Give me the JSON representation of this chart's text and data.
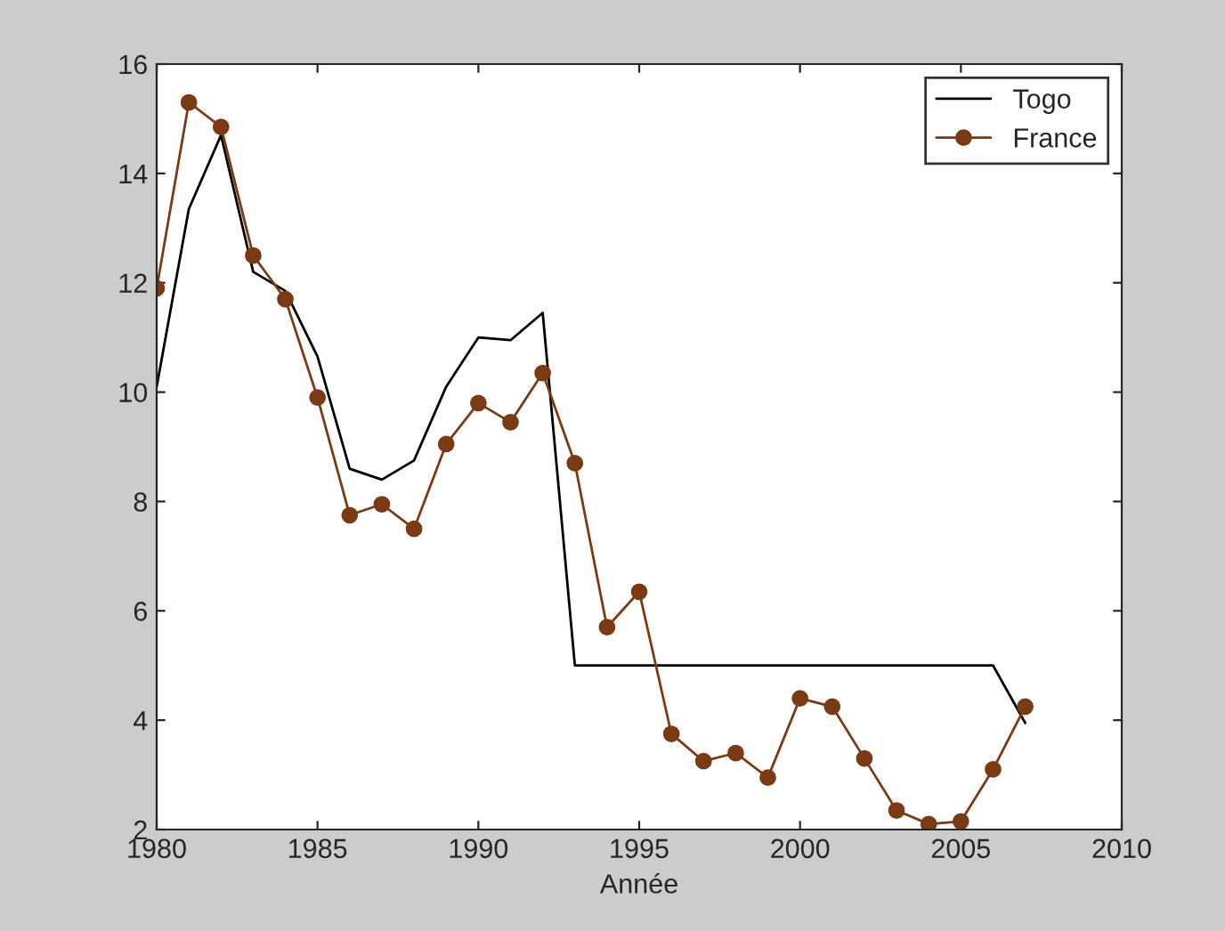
{
  "chart_data": {
    "type": "line",
    "xlabel": "Année",
    "xlim": [
      1980,
      2010
    ],
    "xticks": [
      1980,
      1985,
      1990,
      1995,
      2000,
      2005,
      2010
    ],
    "ylim": [
      2,
      16
    ],
    "yticks": [
      2,
      4,
      6,
      8,
      10,
      12,
      14,
      16
    ],
    "grid": false,
    "legend": "top right",
    "series": [
      {
        "name": "Togo",
        "color": "#000000",
        "marker": "none",
        "x": [
          1980,
          1981,
          1982,
          1983,
          1984,
          1985,
          1986,
          1987,
          1988,
          1989,
          1990,
          1991,
          1992,
          1993,
          2006,
          2007
        ],
        "values": [
          10.1,
          13.35,
          14.7,
          12.2,
          11.85,
          10.65,
          8.6,
          8.4,
          8.75,
          10.1,
          11.0,
          10.95,
          11.45,
          5.0,
          5.0,
          3.95
        ]
      },
      {
        "name": "France",
        "color": "#7a3a14",
        "marker": "circle",
        "x": [
          1980,
          1981,
          1982,
          1983,
          1984,
          1985,
          1986,
          1987,
          1988,
          1989,
          1990,
          1991,
          1992,
          1993,
          1994,
          1995,
          1996,
          1997,
          1998,
          1999,
          2000,
          2001,
          2002,
          2003,
          2004,
          2005,
          2006,
          2007
        ],
        "values": [
          11.9,
          15.3,
          14.85,
          12.5,
          11.7,
          9.9,
          7.75,
          7.95,
          7.5,
          9.05,
          9.8,
          9.45,
          10.35,
          8.7,
          5.7,
          6.35,
          3.75,
          3.25,
          3.4,
          2.95,
          4.4,
          4.25,
          3.3,
          2.35,
          2.1,
          2.15,
          3.1,
          4.25
        ]
      }
    ]
  }
}
